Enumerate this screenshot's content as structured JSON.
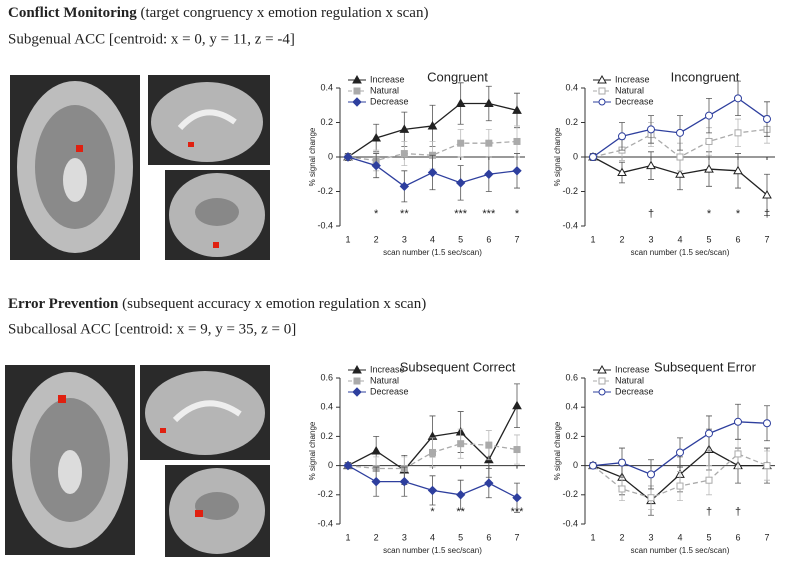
{
  "sections": [
    {
      "title": "Conflict Monitoring",
      "title_note": "(target congruency x emotion regulation x scan)",
      "subtitle": "Subgenual ACC [centroid: x = 0, y = 11, z = -4]"
    },
    {
      "title": "Error Prevention",
      "title_note": "(subsequent accuracy x emotion regulation x scan)",
      "subtitle": "Subcallosal ACC [centroid: x = 9, y = 35, z = 0]"
    }
  ],
  "chart_data": [
    {
      "type": "line",
      "title": "Congruent",
      "y_label": "% signal change",
      "x_label": "scan number (1.5 sec/scan)",
      "categories": [
        "1",
        "2",
        "3",
        "4",
        "5",
        "6",
        "7"
      ],
      "ylim": [
        -0.4,
        0.4
      ],
      "yticks": [
        -0.4,
        -0.2,
        0,
        0.2,
        0.4
      ],
      "legend": "upper left",
      "series": [
        {
          "name": "Increase",
          "color": "#222222",
          "marker": "triangle",
          "filled": true,
          "dashed": false,
          "values": [
            0,
            0.11,
            0.16,
            0.18,
            0.31,
            0.31,
            0.27
          ],
          "errors": [
            0.02,
            0.08,
            0.1,
            0.12,
            0.12,
            0.1,
            0.1
          ]
        },
        {
          "name": "Natural",
          "color": "#aaaaaa",
          "marker": "square",
          "filled": true,
          "dashed": true,
          "values": [
            0,
            -0.02,
            0.02,
            0.01,
            0.08,
            0.08,
            0.09
          ],
          "errors": [
            0.02,
            0.06,
            0.07,
            0.08,
            0.08,
            0.08,
            0.09
          ]
        },
        {
          "name": "Decrease",
          "color": "#2e3f9e",
          "marker": "diamond",
          "filled": true,
          "dashed": false,
          "values": [
            0,
            -0.05,
            -0.17,
            -0.09,
            -0.15,
            -0.1,
            -0.08
          ],
          "errors": [
            0.02,
            0.07,
            0.09,
            0.1,
            0.1,
            0.1,
            0.1
          ]
        }
      ],
      "annotations": [
        {
          "x": "2",
          "text": "*"
        },
        {
          "x": "3",
          "text": "**"
        },
        {
          "x": "5",
          "text": "***"
        },
        {
          "x": "6",
          "text": "***"
        },
        {
          "x": "7",
          "text": "*"
        }
      ]
    },
    {
      "type": "line",
      "title": "Incongruent",
      "y_label": "% signal change",
      "x_label": "scan number (1.5 sec/scan)",
      "categories": [
        "1",
        "2",
        "3",
        "4",
        "5",
        "6",
        "7"
      ],
      "ylim": [
        -0.4,
        0.4
      ],
      "yticks": [
        -0.4,
        -0.2,
        0,
        0.2,
        0.4
      ],
      "legend": "upper left",
      "series": [
        {
          "name": "Increase",
          "color": "#222222",
          "marker": "triangle",
          "filled": false,
          "dashed": false,
          "values": [
            0,
            -0.09,
            -0.05,
            -0.1,
            -0.07,
            -0.08,
            -0.22
          ],
          "errors": [
            0.02,
            0.06,
            0.08,
            0.09,
            0.1,
            0.1,
            0.12
          ]
        },
        {
          "name": "Natural",
          "color": "#aaaaaa",
          "marker": "square",
          "filled": false,
          "dashed": true,
          "values": [
            0,
            0.04,
            0.13,
            0,
            0.09,
            0.14,
            0.16
          ],
          "errors": [
            0.02,
            0.06,
            0.07,
            0.08,
            0.08,
            0.08,
            0.08
          ]
        },
        {
          "name": "Decrease",
          "color": "#2e3f9e",
          "marker": "circle",
          "filled": false,
          "dashed": false,
          "values": [
            0,
            0.12,
            0.16,
            0.14,
            0.24,
            0.34,
            0.22
          ],
          "errors": [
            0.02,
            0.08,
            0.08,
            0.1,
            0.1,
            0.1,
            0.1
          ]
        }
      ],
      "annotations": [
        {
          "x": "3",
          "text": "†"
        },
        {
          "x": "5",
          "text": "*"
        },
        {
          "x": "6",
          "text": "*"
        },
        {
          "x": "7",
          "text": "†"
        }
      ]
    },
    {
      "type": "line",
      "title": "Subsequent Correct",
      "y_label": "% signal change",
      "x_label": "scan number (1.5 sec/scan)",
      "categories": [
        "1",
        "2",
        "3",
        "4",
        "5",
        "6",
        "7"
      ],
      "ylim": [
        -0.4,
        0.6
      ],
      "yticks": [
        -0.4,
        -0.2,
        0,
        0.2,
        0.4,
        0.6
      ],
      "legend": "upper left",
      "series": [
        {
          "name": "Increase",
          "color": "#222222",
          "marker": "triangle",
          "filled": true,
          "dashed": false,
          "values": [
            0,
            0.1,
            -0.03,
            0.2,
            0.23,
            0.04,
            0.41
          ],
          "errors": [
            0.02,
            0.1,
            0.1,
            0.14,
            0.14,
            0.12,
            0.15
          ]
        },
        {
          "name": "Natural",
          "color": "#aaaaaa",
          "marker": "square",
          "filled": true,
          "dashed": true,
          "values": [
            0,
            -0.02,
            -0.02,
            0.09,
            0.15,
            0.14,
            0.11
          ],
          "errors": [
            0.02,
            0.08,
            0.08,
            0.1,
            0.1,
            0.1,
            0.1
          ]
        },
        {
          "name": "Decrease",
          "color": "#2e3f9e",
          "marker": "diamond",
          "filled": true,
          "dashed": false,
          "values": [
            0,
            -0.11,
            -0.11,
            -0.17,
            -0.2,
            -0.12,
            -0.22
          ],
          "errors": [
            0.02,
            0.1,
            0.1,
            0.1,
            0.1,
            0.1,
            0.1
          ]
        }
      ],
      "annotations": [
        {
          "x": "4",
          "text": "*"
        },
        {
          "x": "5",
          "text": "**"
        },
        {
          "x": "7",
          "text": "***"
        }
      ]
    },
    {
      "type": "line",
      "title": "Subsequent Error",
      "y_label": "% signal change",
      "x_label": "scan number (1.5 sec/scan)",
      "categories": [
        "1",
        "2",
        "3",
        "4",
        "5",
        "6",
        "7"
      ],
      "ylim": [
        -0.4,
        0.6
      ],
      "yticks": [
        -0.4,
        -0.2,
        0,
        0.2,
        0.4,
        0.6
      ],
      "legend": "upper left",
      "series": [
        {
          "name": "Increase",
          "color": "#222222",
          "marker": "triangle",
          "filled": false,
          "dashed": false,
          "values": [
            0,
            -0.08,
            -0.24,
            -0.06,
            0.11,
            0,
            0
          ],
          "errors": [
            0.02,
            0.12,
            0.1,
            0.12,
            0.14,
            0.12,
            0.12
          ]
        },
        {
          "name": "Natural",
          "color": "#aaaaaa",
          "marker": "square",
          "filled": false,
          "dashed": true,
          "values": [
            0,
            -0.16,
            -0.22,
            -0.14,
            -0.1,
            0.08,
            0
          ],
          "errors": [
            0.02,
            0.08,
            0.08,
            0.1,
            0.1,
            0.1,
            0.1
          ]
        },
        {
          "name": "Decrease",
          "color": "#2e3f9e",
          "marker": "circle",
          "filled": false,
          "dashed": false,
          "values": [
            0,
            0.02,
            -0.06,
            0.09,
            0.22,
            0.3,
            0.29
          ],
          "errors": [
            0.02,
            0.1,
            0.1,
            0.1,
            0.12,
            0.12,
            0.12
          ]
        }
      ],
      "annotations": [
        {
          "x": "5",
          "text": "†"
        },
        {
          "x": "6",
          "text": "†"
        }
      ]
    }
  ]
}
